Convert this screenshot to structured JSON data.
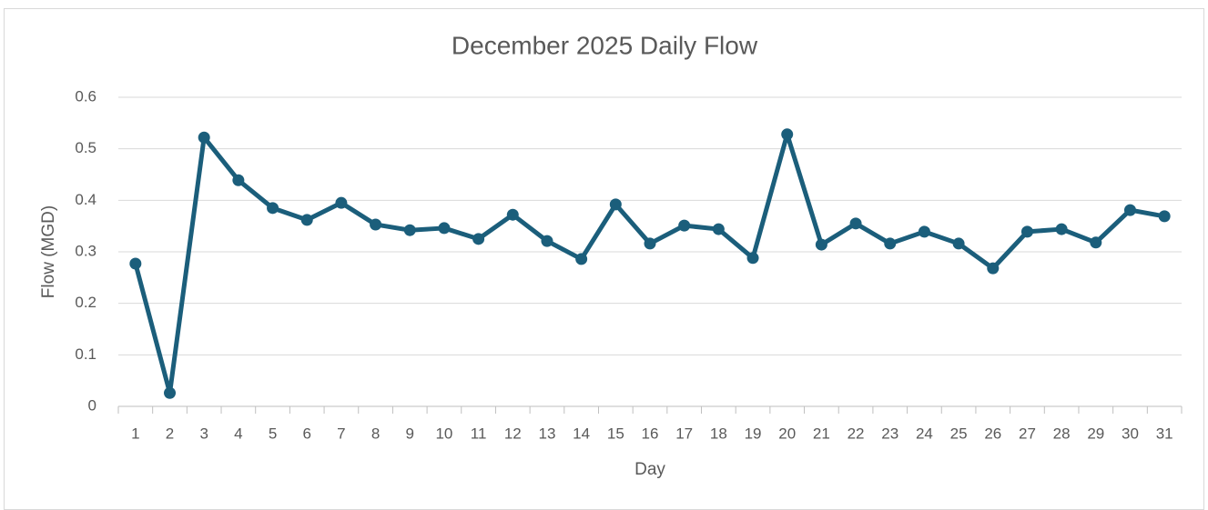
{
  "chart_data": {
    "type": "line",
    "title": "December 2025 Daily Flow",
    "x_label": "Day",
    "y_label": "Flow (MGD)",
    "categories": [
      "1",
      "2",
      "3",
      "4",
      "5",
      "6",
      "7",
      "8",
      "9",
      "10",
      "11",
      "12",
      "13",
      "14",
      "15",
      "16",
      "17",
      "18",
      "19",
      "20",
      "21",
      "22",
      "23",
      "24",
      "25",
      "26",
      "27",
      "28",
      "29",
      "30",
      "31"
    ],
    "values": [
      0.277,
      0.026,
      0.522,
      0.439,
      0.385,
      0.362,
      0.395,
      0.353,
      0.342,
      0.346,
      0.325,
      0.372,
      0.321,
      0.286,
      0.392,
      0.316,
      0.351,
      0.344,
      0.288,
      0.528,
      0.314,
      0.355,
      0.316,
      0.339,
      0.316,
      0.268,
      0.339,
      0.344,
      0.318,
      0.381,
      0.369
    ],
    "color": "#1b5e7b",
    "ylim": [
      0,
      0.6
    ],
    "yticks": [
      0,
      0.1,
      0.2,
      0.3,
      0.4,
      0.5,
      0.6
    ],
    "grid": true
  }
}
